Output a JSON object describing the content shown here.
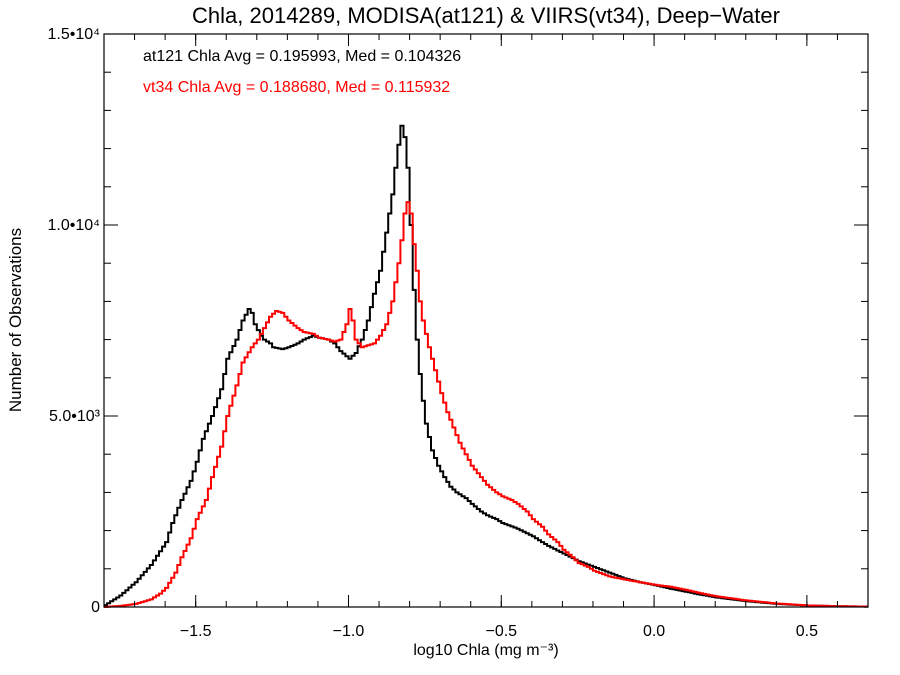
{
  "chart_data": {
    "type": "line",
    "title": "Chla, 2014289, MODISA(at121) & VIIRS(vt34), Deep−Water",
    "xlabel": "log10 Chla (mg m⁻³)",
    "ylabel": "Number of Observations",
    "xlim": [
      -1.8,
      0.7
    ],
    "ylim": [
      0,
      15000
    ],
    "xticks": [
      {
        "value": -1.5,
        "label": "−1.5"
      },
      {
        "value": -1.0,
        "label": "−1.0"
      },
      {
        "value": -0.5,
        "label": "−0.5"
      },
      {
        "value": 0.0,
        "label": "0.0"
      },
      {
        "value": 0.5,
        "label": "0.5"
      }
    ],
    "yticks": [
      {
        "value": 0,
        "label": "0"
      },
      {
        "value": 5000,
        "label": "5.0•10³"
      },
      {
        "value": 10000,
        "label": "1.0•10⁴"
      },
      {
        "value": 15000,
        "label": "1.5•10⁴"
      }
    ],
    "annotations": [
      {
        "text": "at121 Chla Avg = 0.195993, Med = 0.104326",
        "color": "#000000"
      },
      {
        "text": "vt34 Chla Avg = 0.188680, Med = 0.115932",
        "color": "#ff0000"
      }
    ],
    "series": [
      {
        "color": "#000000",
        "x": [
          -1.8,
          -1.75,
          -1.7,
          -1.65,
          -1.6,
          -1.58,
          -1.55,
          -1.52,
          -1.5,
          -1.48,
          -1.45,
          -1.42,
          -1.4,
          -1.37,
          -1.35,
          -1.33,
          -1.32,
          -1.31,
          -1.3,
          -1.29,
          -1.28,
          -1.26,
          -1.25,
          -1.22,
          -1.2,
          -1.17,
          -1.15,
          -1.12,
          -1.1,
          -1.07,
          -1.05,
          -1.03,
          -1.0,
          -0.98,
          -0.96,
          -0.94,
          -0.92,
          -0.9,
          -0.88,
          -0.86,
          -0.85,
          -0.84,
          -0.83,
          -0.82,
          -0.81,
          -0.8,
          -0.79,
          -0.78,
          -0.77,
          -0.76,
          -0.75,
          -0.73,
          -0.71,
          -0.69,
          -0.67,
          -0.65,
          -0.62,
          -0.6,
          -0.57,
          -0.55,
          -0.52,
          -0.5,
          -0.45,
          -0.4,
          -0.35,
          -0.3,
          -0.25,
          -0.2,
          -0.15,
          -0.1,
          -0.05,
          0.0,
          0.05,
          0.1,
          0.15,
          0.2,
          0.3,
          0.4,
          0.5,
          0.6,
          0.7
        ],
        "y": [
          50,
          300,
          650,
          1100,
          1700,
          2200,
          2800,
          3300,
          3800,
          4400,
          5000,
          5700,
          6500,
          7000,
          7500,
          7800,
          7700,
          7400,
          7250,
          7100,
          7000,
          6900,
          6800,
          6750,
          6800,
          6900,
          7000,
          7100,
          7050,
          7000,
          6900,
          6700,
          6500,
          6650,
          7000,
          7500,
          8200,
          8800,
          9800,
          10800,
          11500,
          12100,
          12600,
          12300,
          11500,
          10000,
          8300,
          7000,
          6100,
          5400,
          4800,
          4100,
          3700,
          3400,
          3150,
          3000,
          2850,
          2700,
          2500,
          2400,
          2300,
          2200,
          2050,
          1850,
          1600,
          1400,
          1200,
          1050,
          900,
          750,
          650,
          570,
          480,
          400,
          320,
          250,
          150,
          80,
          40,
          20,
          10
        ]
      },
      {
        "color": "#ff0000",
        "x": [
          -1.8,
          -1.75,
          -1.7,
          -1.65,
          -1.62,
          -1.6,
          -1.57,
          -1.55,
          -1.52,
          -1.5,
          -1.47,
          -1.45,
          -1.42,
          -1.4,
          -1.37,
          -1.35,
          -1.32,
          -1.3,
          -1.28,
          -1.26,
          -1.24,
          -1.22,
          -1.2,
          -1.17,
          -1.15,
          -1.12,
          -1.1,
          -1.07,
          -1.05,
          -1.03,
          -1.01,
          -1.0,
          -0.99,
          -0.98,
          -0.96,
          -0.94,
          -0.92,
          -0.9,
          -0.88,
          -0.86,
          -0.84,
          -0.83,
          -0.82,
          -0.81,
          -0.8,
          -0.79,
          -0.78,
          -0.77,
          -0.76,
          -0.74,
          -0.72,
          -0.7,
          -0.68,
          -0.66,
          -0.64,
          -0.62,
          -0.6,
          -0.57,
          -0.55,
          -0.52,
          -0.5,
          -0.47,
          -0.45,
          -0.42,
          -0.4,
          -0.37,
          -0.35,
          -0.32,
          -0.3,
          -0.27,
          -0.25,
          -0.22,
          -0.2,
          -0.15,
          -0.1,
          -0.05,
          0.0,
          0.05,
          0.1,
          0.15,
          0.2,
          0.3,
          0.4,
          0.5,
          0.6,
          0.7
        ],
        "y": [
          0,
          30,
          80,
          200,
          350,
          500,
          900,
          1300,
          1800,
          2300,
          2800,
          3400,
          4200,
          5000,
          5800,
          6400,
          6800,
          7000,
          7300,
          7600,
          7750,
          7700,
          7500,
          7300,
          7200,
          7150,
          7050,
          7000,
          6950,
          7000,
          7400,
          7800,
          7500,
          7000,
          6800,
          6850,
          6900,
          7100,
          7400,
          8000,
          9000,
          9600,
          10300,
          10600,
          10300,
          9500,
          8800,
          8000,
          7500,
          6800,
          6200,
          5600,
          5100,
          4700,
          4300,
          4000,
          3700,
          3400,
          3200,
          3000,
          2900,
          2800,
          2700,
          2500,
          2300,
          2100,
          1900,
          1700,
          1500,
          1300,
          1150,
          1050,
          950,
          800,
          720,
          650,
          580,
          530,
          450,
          360,
          280,
          170,
          90,
          40,
          20,
          10
        ]
      }
    ]
  }
}
